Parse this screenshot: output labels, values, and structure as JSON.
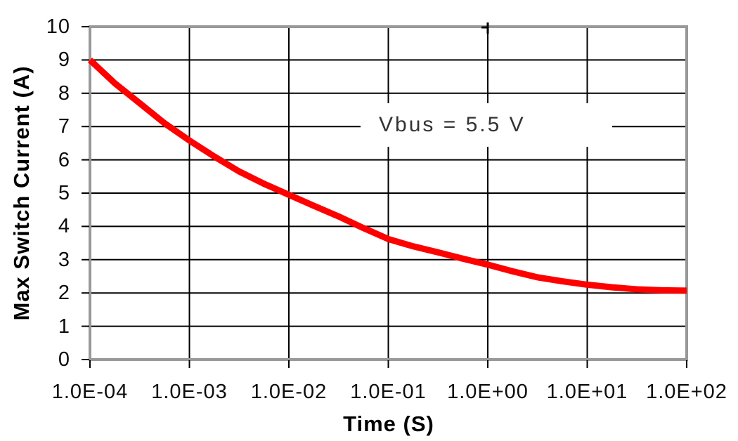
{
  "chart_data": {
    "type": "line",
    "title": "",
    "xlabel": "Time (S)",
    "ylabel": "Max Switch Current (A)",
    "annotation": "Vbus = 5.5 V",
    "x_scale": "log",
    "xlim_log": [
      -4,
      2
    ],
    "ylim": [
      0,
      10
    ],
    "grid": true,
    "legend": "none",
    "x_ticks": [
      {
        "label": "1.0E-04",
        "log": -4
      },
      {
        "label": "1.0E-03",
        "log": -3
      },
      {
        "label": "1.0E-02",
        "log": -2
      },
      {
        "label": "1.0E-01",
        "log": -1
      },
      {
        "label": "1.0E+00",
        "log": 0
      },
      {
        "label": "1.0E+01",
        "log": 1
      },
      {
        "label": "1.0E+02",
        "log": 2
      }
    ],
    "y_ticks": [
      {
        "label": "0",
        "value": 0
      },
      {
        "label": "1",
        "value": 1
      },
      {
        "label": "2",
        "value": 2
      },
      {
        "label": "3",
        "value": 3
      },
      {
        "label": "4",
        "value": 4
      },
      {
        "label": "5",
        "value": 5
      },
      {
        "label": "6",
        "value": 6
      },
      {
        "label": "7",
        "value": 7
      },
      {
        "label": "8",
        "value": 8
      },
      {
        "label": "9",
        "value": 9
      },
      {
        "label": "10",
        "value": 10
      }
    ],
    "series": [
      {
        "name": "max-switch-current",
        "color": "#FF0000",
        "line_width": 9,
        "points_log_t_vs_amps": [
          [
            -4.0,
            9.0
          ],
          [
            -3.75,
            8.3
          ],
          [
            -3.5,
            7.7
          ],
          [
            -3.25,
            7.1
          ],
          [
            -3.0,
            6.58
          ],
          [
            -2.75,
            6.1
          ],
          [
            -2.5,
            5.65
          ],
          [
            -2.25,
            5.28
          ],
          [
            -2.0,
            4.95
          ],
          [
            -1.75,
            4.62
          ],
          [
            -1.5,
            4.3
          ],
          [
            -1.25,
            3.95
          ],
          [
            -1.0,
            3.62
          ],
          [
            -0.75,
            3.4
          ],
          [
            -0.5,
            3.22
          ],
          [
            -0.25,
            3.03
          ],
          [
            0.0,
            2.85
          ],
          [
            0.25,
            2.65
          ],
          [
            0.5,
            2.47
          ],
          [
            0.75,
            2.35
          ],
          [
            1.0,
            2.25
          ],
          [
            1.25,
            2.17
          ],
          [
            1.5,
            2.11
          ],
          [
            1.75,
            2.08
          ],
          [
            2.0,
            2.07
          ]
        ]
      }
    ],
    "colors": {
      "background": "#FFFFFF",
      "plot_border": "#999999",
      "gridline": "#000000",
      "tick": "#000000",
      "tick_text": "#0D0D0D",
      "axis_title_text": "#000000",
      "annotation_text": "#333333",
      "line": "#FF0000"
    }
  }
}
